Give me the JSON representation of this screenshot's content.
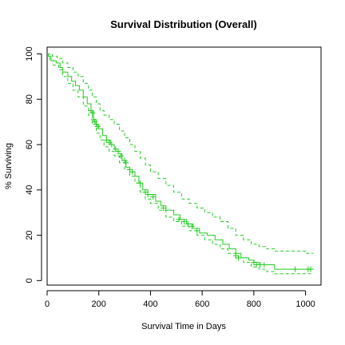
{
  "chart_data": {
    "type": "line",
    "title": "Survival Distribution (Overall)",
    "xlabel": "Survival Time in Days",
    "ylabel": "% Surviving",
    "xlim": [
      0,
      1060
    ],
    "ylim": [
      -2,
      103
    ],
    "xticks": [
      0,
      200,
      400,
      600,
      800,
      1000
    ],
    "yticks": [
      0,
      20,
      40,
      60,
      80,
      100
    ],
    "grid": false,
    "color": "#22cc22",
    "series": [
      {
        "role": "estimate",
        "style": "solid",
        "points": [
          [
            0,
            100
          ],
          [
            5,
            99
          ],
          [
            15,
            97
          ],
          [
            35,
            96
          ],
          [
            50,
            94
          ],
          [
            60,
            92
          ],
          [
            80,
            90
          ],
          [
            95,
            88
          ],
          [
            110,
            86
          ],
          [
            125,
            84
          ],
          [
            140,
            81
          ],
          [
            155,
            78
          ],
          [
            170,
            75
          ],
          [
            180,
            71
          ],
          [
            190,
            69
          ],
          [
            200,
            67
          ],
          [
            215,
            64
          ],
          [
            230,
            62
          ],
          [
            245,
            60
          ],
          [
            260,
            58
          ],
          [
            275,
            56
          ],
          [
            290,
            53
          ],
          [
            305,
            50
          ],
          [
            320,
            48
          ],
          [
            340,
            46
          ],
          [
            355,
            43
          ],
          [
            370,
            40
          ],
          [
            390,
            38
          ],
          [
            420,
            35
          ],
          [
            440,
            33
          ],
          [
            460,
            31
          ],
          [
            490,
            29
          ],
          [
            515,
            27
          ],
          [
            540,
            25
          ],
          [
            565,
            23
          ],
          [
            590,
            21
          ],
          [
            620,
            20
          ],
          [
            650,
            18
          ],
          [
            680,
            16
          ],
          [
            705,
            14
          ],
          [
            730,
            12
          ],
          [
            750,
            10
          ],
          [
            780,
            9
          ],
          [
            800,
            8
          ],
          [
            820,
            7
          ],
          [
            880,
            5
          ],
          [
            1000,
            5
          ],
          [
            1030,
            5
          ]
        ]
      },
      {
        "role": "upper-confidence-limit",
        "style": "dashed",
        "points": [
          [
            0,
            100
          ],
          [
            20,
            99
          ],
          [
            40,
            98
          ],
          [
            60,
            96
          ],
          [
            80,
            94
          ],
          [
            100,
            92
          ],
          [
            120,
            90
          ],
          [
            140,
            87
          ],
          [
            160,
            84
          ],
          [
            175,
            81
          ],
          [
            190,
            78
          ],
          [
            205,
            75
          ],
          [
            220,
            73
          ],
          [
            240,
            71
          ],
          [
            260,
            69
          ],
          [
            280,
            66
          ],
          [
            300,
            63
          ],
          [
            320,
            60
          ],
          [
            340,
            57
          ],
          [
            360,
            54
          ],
          [
            380,
            51
          ],
          [
            400,
            48
          ],
          [
            430,
            45
          ],
          [
            460,
            42
          ],
          [
            490,
            39
          ],
          [
            520,
            36
          ],
          [
            550,
            34
          ],
          [
            580,
            32
          ],
          [
            610,
            30
          ],
          [
            640,
            28
          ],
          [
            670,
            26
          ],
          [
            700,
            23
          ],
          [
            730,
            20
          ],
          [
            760,
            18
          ],
          [
            790,
            16
          ],
          [
            820,
            15
          ],
          [
            850,
            14
          ],
          [
            880,
            13
          ],
          [
            1000,
            12
          ],
          [
            1030,
            12
          ]
        ]
      },
      {
        "role": "lower-confidence-limit",
        "style": "dashed",
        "points": [
          [
            0,
            100
          ],
          [
            10,
            97
          ],
          [
            25,
            95
          ],
          [
            45,
            93
          ],
          [
            60,
            90
          ],
          [
            80,
            87
          ],
          [
            100,
            84
          ],
          [
            120,
            81
          ],
          [
            140,
            77
          ],
          [
            160,
            73
          ],
          [
            175,
            69
          ],
          [
            190,
            65
          ],
          [
            205,
            62
          ],
          [
            220,
            59
          ],
          [
            240,
            57
          ],
          [
            260,
            55
          ],
          [
            280,
            52
          ],
          [
            300,
            49
          ],
          [
            320,
            46
          ],
          [
            340,
            43
          ],
          [
            360,
            39
          ],
          [
            380,
            36
          ],
          [
            400,
            34
          ],
          [
            430,
            31
          ],
          [
            460,
            28
          ],
          [
            490,
            26
          ],
          [
            520,
            24
          ],
          [
            550,
            22
          ],
          [
            580,
            20
          ],
          [
            610,
            18
          ],
          [
            640,
            16
          ],
          [
            670,
            14
          ],
          [
            700,
            12
          ],
          [
            730,
            10
          ],
          [
            760,
            8
          ],
          [
            790,
            6
          ],
          [
            820,
            5
          ],
          [
            850,
            4
          ],
          [
            880,
            3
          ],
          [
            1000,
            3
          ],
          [
            1030,
            3
          ]
        ]
      }
    ],
    "censored": [
      [
        170,
        75
      ],
      [
        175,
        74
      ],
      [
        180,
        71
      ],
      [
        185,
        70
      ],
      [
        190,
        69
      ],
      [
        195,
        68
      ],
      [
        230,
        62
      ],
      [
        240,
        61
      ],
      [
        250,
        60
      ],
      [
        265,
        58
      ],
      [
        275,
        57
      ],
      [
        285,
        55
      ],
      [
        300,
        53
      ],
      [
        305,
        52
      ],
      [
        320,
        49
      ],
      [
        330,
        48
      ],
      [
        360,
        43
      ],
      [
        380,
        39
      ],
      [
        390,
        38
      ],
      [
        410,
        37
      ],
      [
        450,
        32
      ],
      [
        510,
        27
      ],
      [
        530,
        26
      ],
      [
        545,
        25
      ],
      [
        560,
        24
      ],
      [
        580,
        22
      ],
      [
        730,
        11
      ],
      [
        740,
        10
      ],
      [
        800,
        8
      ],
      [
        810,
        7
      ],
      [
        825,
        7
      ],
      [
        840,
        7
      ],
      [
        960,
        5
      ],
      [
        1010,
        5
      ],
      [
        1020,
        5
      ]
    ]
  }
}
